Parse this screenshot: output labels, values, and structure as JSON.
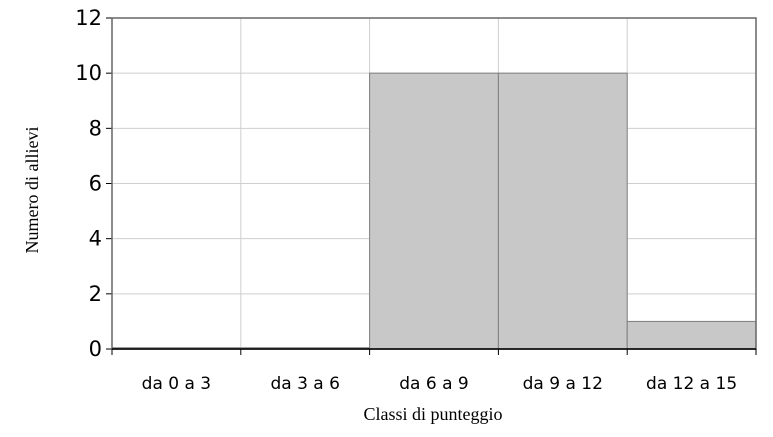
{
  "chart_data": {
    "type": "bar",
    "categories": [
      "da 0 a 3",
      "da 3 a 6",
      "da 6 a 9",
      "da 9 a 12",
      "da 12 a 15"
    ],
    "values": [
      0,
      0,
      10,
      10,
      1
    ],
    "xlabel": "Classi di punteggio",
    "ylabel": "Numero di allievi",
    "ylim": [
      0,
      12
    ],
    "yticks": [
      "0",
      "2",
      "4",
      "6",
      "8",
      "10",
      "12"
    ],
    "grid": true,
    "bar_color": "#c8c8c8",
    "bar_edge_color": "#7f7f7f",
    "grid_color": "#cfcfcf",
    "axis_color": "#666666"
  }
}
